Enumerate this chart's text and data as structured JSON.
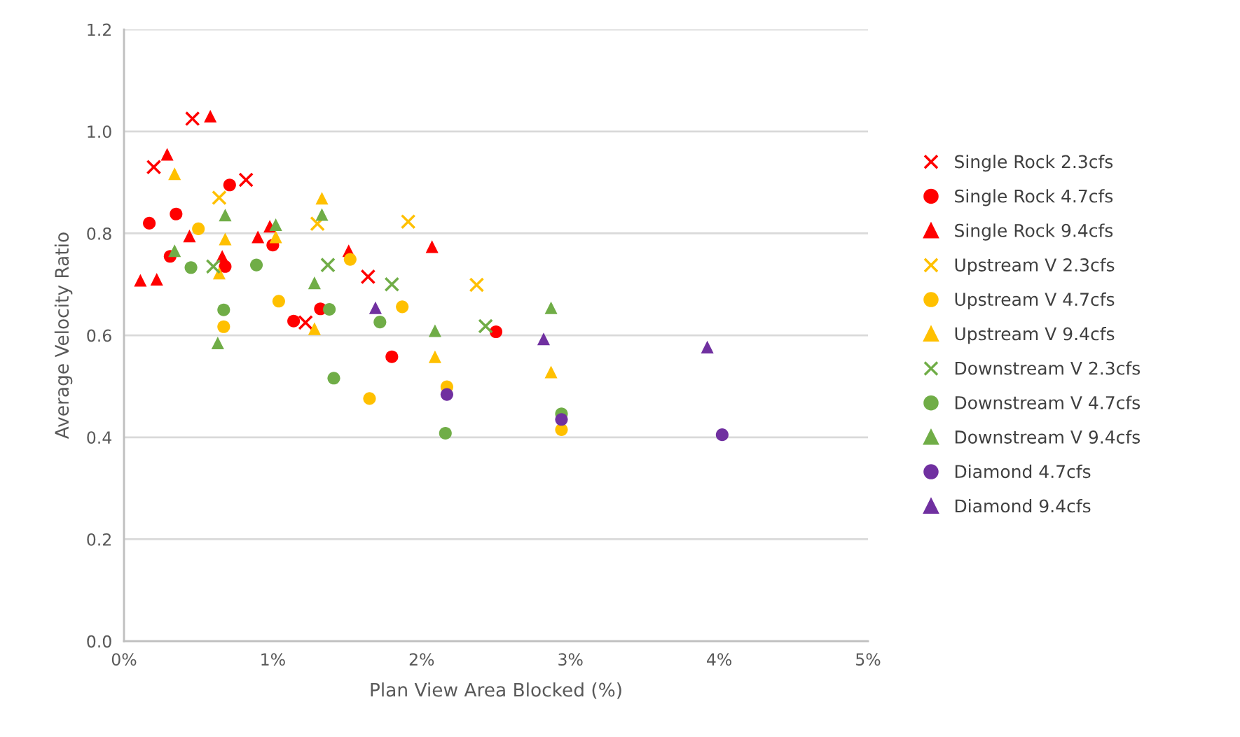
{
  "chart_data": {
    "type": "scatter",
    "xlabel": "Plan View Area Blocked (%)",
    "ylabel": "Average Velocity Ratio",
    "xlim": [
      0,
      5
    ],
    "xticks": [
      {
        "value": 0,
        "label": "0%"
      },
      {
        "value": 1,
        "label": "1%"
      },
      {
        "value": 2,
        "label": "2%"
      },
      {
        "value": 3,
        "label": "3%"
      },
      {
        "value": 4,
        "label": "4%"
      },
      {
        "value": 5,
        "label": "5%"
      }
    ],
    "ylim": [
      0,
      1.2
    ],
    "yticks": [
      {
        "value": 0,
        "label": "0.0"
      },
      {
        "value": 0.2,
        "label": "0.2"
      },
      {
        "value": 0.4,
        "label": "0.4"
      },
      {
        "value": 0.6,
        "label": "0.6"
      },
      {
        "value": 0.8,
        "label": "0.8"
      },
      {
        "value": 1.0,
        "label": "1.0"
      },
      {
        "value": 1.2,
        "label": "1.2"
      }
    ],
    "grid": "y",
    "legend": "right",
    "series": [
      {
        "name": "Single Rock 2.3cfs",
        "color": "#ff0000",
        "marker": "cross",
        "x": [
          0.2,
          0.46,
          0.82,
          1.22,
          1.64
        ],
        "values": [
          0.93,
          1.025,
          0.905,
          0.625,
          0.715
        ]
      },
      {
        "name": "Single Rock 4.7cfs",
        "color": "#ff0000",
        "marker": "circle",
        "x": [
          0.17,
          0.31,
          0.35,
          0.68,
          0.71,
          1.0,
          1.14,
          1.32,
          1.8,
          2.5
        ],
        "values": [
          0.82,
          0.755,
          0.838,
          0.735,
          0.895,
          0.777,
          0.628,
          0.652,
          0.558,
          0.607
        ]
      },
      {
        "name": "Single Rock 9.4cfs",
        "color": "#ff0000",
        "marker": "triangle",
        "x": [
          0.11,
          0.22,
          0.29,
          0.44,
          0.58,
          0.66,
          0.9,
          0.98,
          1.51,
          2.07
        ],
        "values": [
          0.708,
          0.71,
          0.955,
          0.795,
          1.03,
          0.755,
          0.793,
          0.814,
          0.766,
          0.774
        ]
      },
      {
        "name": "Upstream V 2.3cfs",
        "color": "#ffc000",
        "marker": "cross",
        "x": [
          0.64,
          1.3,
          1.91,
          2.37
        ],
        "values": [
          0.87,
          0.819,
          0.823,
          0.699
        ]
      },
      {
        "name": "Upstream V 4.7cfs",
        "color": "#ffc000",
        "marker": "circle",
        "x": [
          0.5,
          0.67,
          1.04,
          1.52,
          1.65,
          1.87,
          2.17,
          2.94
        ],
        "values": [
          0.809,
          0.617,
          0.667,
          0.749,
          0.476,
          0.656,
          0.499,
          0.415
        ]
      },
      {
        "name": "Upstream V 9.4cfs",
        "color": "#ffc000",
        "marker": "triangle",
        "x": [
          0.34,
          0.64,
          0.68,
          1.02,
          1.28,
          1.33,
          2.09,
          2.87
        ],
        "values": [
          0.917,
          0.722,
          0.789,
          0.793,
          0.613,
          0.869,
          0.558,
          0.528
        ]
      },
      {
        "name": "Downstream V 2.3cfs",
        "color": "#70ad47",
        "marker": "cross",
        "x": [
          0.6,
          1.37,
          1.8,
          2.43
        ],
        "values": [
          0.735,
          0.738,
          0.7,
          0.618
        ]
      },
      {
        "name": "Downstream V 4.7cfs",
        "color": "#70ad47",
        "marker": "circle",
        "x": [
          0.45,
          0.67,
          0.89,
          1.38,
          1.41,
          1.72,
          2.16,
          2.94
        ],
        "values": [
          0.733,
          0.65,
          0.738,
          0.651,
          0.516,
          0.626,
          0.408,
          0.446
        ]
      },
      {
        "name": "Downstream V 9.4cfs",
        "color": "#70ad47",
        "marker": "triangle",
        "x": [
          0.34,
          0.63,
          0.68,
          1.02,
          1.28,
          1.33,
          2.09,
          2.87
        ],
        "values": [
          0.766,
          0.585,
          0.836,
          0.817,
          0.703,
          0.837,
          0.609,
          0.654
        ]
      },
      {
        "name": "Diamond 4.7cfs",
        "color": "#7030a0",
        "marker": "circle",
        "x": [
          2.17,
          2.94,
          4.02
        ],
        "values": [
          0.484,
          0.435,
          0.405
        ]
      },
      {
        "name": "Diamond 9.4cfs",
        "color": "#7030a0",
        "marker": "triangle",
        "x": [
          1.69,
          2.82,
          3.92
        ],
        "values": [
          0.654,
          0.593,
          0.577
        ]
      }
    ]
  }
}
